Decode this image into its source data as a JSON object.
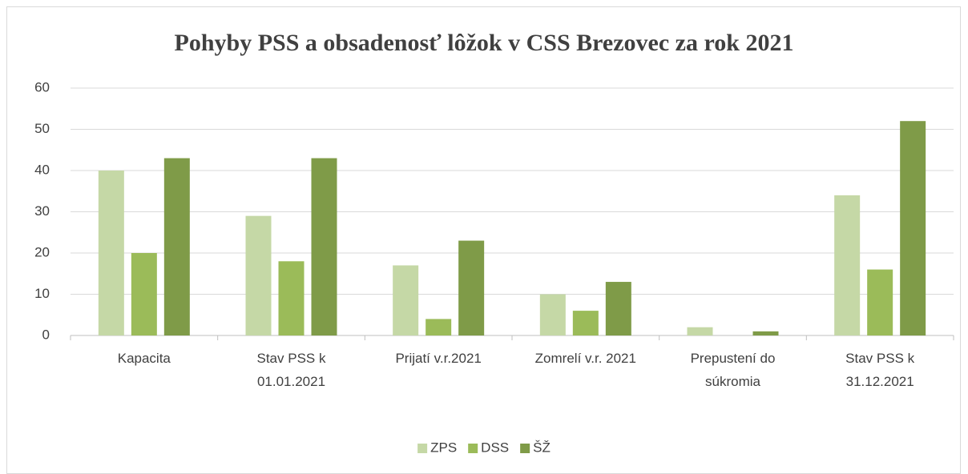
{
  "chart_data": {
    "type": "bar",
    "title": "Pohyby PSS a obsadenosť lôžok v CSS Brezovec za rok 2021",
    "categories": [
      "Kapacita",
      "Stav PSS k 01.01.2021",
      "Prijatí v.r.2021",
      "Zomrelí v.r. 2021",
      "Prepustení do súkromia",
      "Stav PSS k 31.12.2021"
    ],
    "series": [
      {
        "name": "ZPS",
        "color": "#c5d8a6",
        "values": [
          40,
          29,
          17,
          10,
          2,
          34
        ]
      },
      {
        "name": "DSS",
        "color": "#9bbb59",
        "values": [
          20,
          18,
          4,
          6,
          0,
          16
        ]
      },
      {
        "name": "ŠŽ",
        "color": "#7f9b48",
        "values": [
          43,
          43,
          23,
          13,
          1,
          52
        ]
      }
    ],
    "ylim": [
      0,
      60
    ],
    "yticks": [
      0,
      10,
      20,
      30,
      40,
      50,
      60
    ],
    "grid": true,
    "legend": "bottom"
  }
}
